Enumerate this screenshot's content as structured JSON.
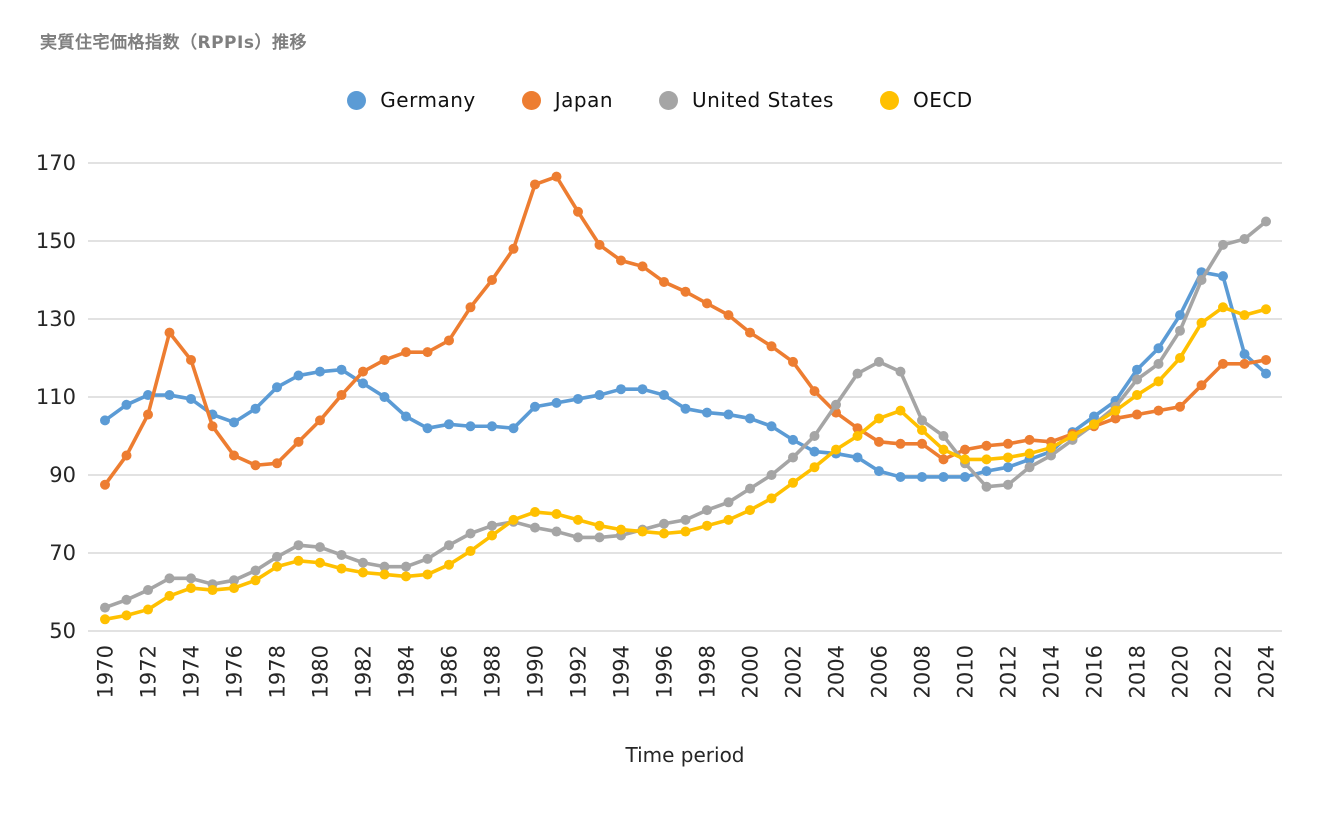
{
  "header": {
    "title": "実質住宅価格指数（RPPIs）推移"
  },
  "colors": {
    "germany": "#5B9BD5",
    "japan": "#ED7D31",
    "united_states": "#A5A5A5",
    "oecd": "#FFC000",
    "gridline": "#D9D9D9",
    "tick_text": "#262626",
    "title_text": "#7F7F7F"
  },
  "chart_data": {
    "type": "line",
    "title": "実質住宅価格指数（RPPIs）推移",
    "xlabel": "Time period",
    "ylabel": "",
    "ylim": [
      50,
      170
    ],
    "yticks": [
      50,
      70,
      90,
      110,
      130,
      150,
      170
    ],
    "xtick_step": 2,
    "grid": true,
    "legend_position": "top",
    "marker": "circle",
    "x": [
      1970,
      1971,
      1972,
      1973,
      1974,
      1975,
      1976,
      1977,
      1978,
      1979,
      1980,
      1981,
      1982,
      1983,
      1984,
      1985,
      1986,
      1987,
      1988,
      1989,
      1990,
      1991,
      1992,
      1993,
      1994,
      1995,
      1996,
      1997,
      1998,
      1999,
      2000,
      2001,
      2002,
      2003,
      2004,
      2005,
      2006,
      2007,
      2008,
      2009,
      2010,
      2011,
      2012,
      2013,
      2014,
      2015,
      2016,
      2017,
      2018,
      2019,
      2020,
      2021,
      2022,
      2023,
      2024
    ],
    "series": [
      {
        "name": "Germany",
        "color": "#5B9BD5",
        "values": [
          104,
          108,
          110.5,
          110.5,
          109.5,
          105.5,
          103.5,
          107,
          112.5,
          115.5,
          116.5,
          117,
          113.5,
          110,
          105,
          102,
          103,
          102.5,
          102.5,
          102,
          107.5,
          108.5,
          109.5,
          110.5,
          112,
          112,
          110.5,
          107,
          106,
          105.5,
          104.5,
          102.5,
          99,
          96,
          95.5,
          94.5,
          91,
          89.5,
          89.5,
          89.5,
          89.5,
          91,
          92,
          94,
          96,
          101,
          105,
          109,
          117,
          122.5,
          131,
          142,
          141,
          121,
          116
        ]
      },
      {
        "name": "Japan",
        "color": "#ED7D31",
        "values": [
          87.5,
          95,
          105.5,
          126.5,
          119.5,
          102.5,
          95,
          92.5,
          93,
          98.5,
          104,
          110.5,
          116.5,
          119.5,
          121.5,
          121.5,
          124.5,
          133,
          140,
          148,
          164.5,
          166.5,
          157.5,
          149,
          145,
          143.5,
          139.5,
          137,
          134,
          131,
          126.5,
          123,
          119,
          111.5,
          106,
          102,
          98.5,
          98,
          98,
          94,
          96.5,
          97.5,
          98,
          99,
          98.5,
          100.5,
          102.5,
          104.5,
          105.5,
          106.5,
          107.5,
          113,
          118.5,
          118.5,
          119.5
        ]
      },
      {
        "name": "United States",
        "color": "#A5A5A5",
        "values": [
          56,
          58,
          60.5,
          63.5,
          63.5,
          62,
          63,
          65.5,
          69,
          72,
          71.5,
          69.5,
          67.5,
          66.5,
          66.5,
          68.5,
          72,
          75,
          77,
          78,
          76.5,
          75.5,
          74,
          74,
          74.5,
          76,
          77.5,
          78.5,
          81,
          83,
          86.5,
          90,
          94.5,
          100,
          108,
          116,
          119,
          116.5,
          104,
          100,
          93,
          87,
          87.5,
          92,
          95,
          99,
          103,
          107.5,
          114.5,
          118.5,
          127,
          140,
          149,
          150.5,
          155
        ]
      },
      {
        "name": "OECD",
        "color": "#FFC000",
        "values": [
          53,
          54,
          55.5,
          59,
          61,
          60.5,
          61,
          63,
          66.5,
          68,
          67.5,
          66,
          65,
          64.5,
          64,
          64.5,
          67,
          70.5,
          74.5,
          78.5,
          80.5,
          80,
          78.5,
          77,
          76,
          75.5,
          75,
          75.5,
          77,
          78.5,
          81,
          84,
          88,
          92,
          96.5,
          100,
          104.5,
          106.5,
          101.5,
          96.5,
          94,
          94,
          94.5,
          95.5,
          97,
          100,
          103,
          106.5,
          110.5,
          114,
          120,
          129,
          133,
          131,
          132.5
        ]
      }
    ]
  }
}
